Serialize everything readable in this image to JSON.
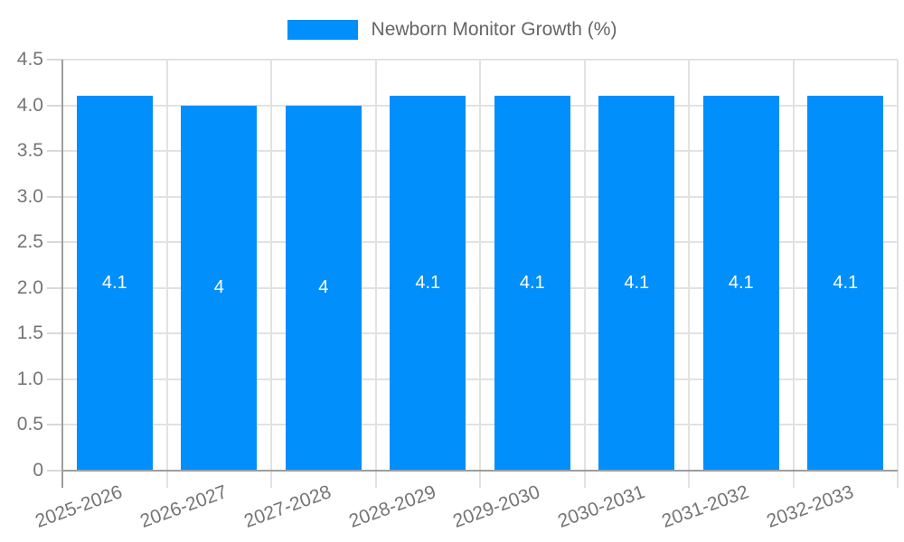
{
  "legend": {
    "label": "Newborn Monitor Growth (%)"
  },
  "chart_data": {
    "type": "bar",
    "title": "",
    "xlabel": "",
    "ylabel": "",
    "legend": [
      "Newborn Monitor Growth (%)"
    ],
    "legend_position": "top",
    "categories": [
      "2025-2026",
      "2026-2027",
      "2027-2028",
      "2028-2029",
      "2029-2030",
      "2030-2031",
      "2031-2032",
      "2032-2033"
    ],
    "values": [
      4.1,
      4.0,
      4.0,
      4.1,
      4.1,
      4.1,
      4.1,
      4.1
    ],
    "bar_labels": [
      "4.1",
      "4",
      "4",
      "4.1",
      "4.1",
      "4.1",
      "4.1",
      "4.1"
    ],
    "ylim": [
      0,
      4.5
    ],
    "y_tick_step": 0.5,
    "y_tick_labels": [
      "0",
      "0.5",
      "1.0",
      "1.5",
      "2.0",
      "2.5",
      "3.0",
      "3.5",
      "4.0",
      "4.5"
    ],
    "grid": true,
    "colors": {
      "bar": "#008FFB",
      "grid": "#e2e2e2",
      "axis": "#9e9e9e",
      "tick": "#d9d9d9",
      "tick_text": "#757575",
      "legend_text": "#666666",
      "value_text": "#ffffff"
    }
  }
}
